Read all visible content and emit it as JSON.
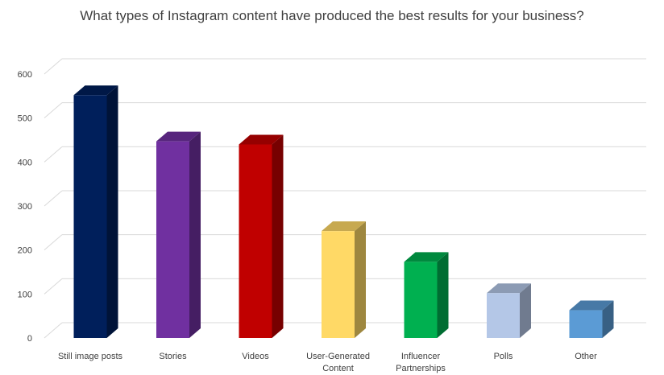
{
  "chart_data": {
    "type": "bar",
    "title": "What types of Instagram content have produced the best results for your business?",
    "xlabel": "",
    "ylabel": "",
    "categories": [
      "Still image posts",
      "Stories",
      "Videos",
      "User-Generated Content",
      "Influencer Partnerships",
      "Polls",
      "Other"
    ],
    "category_label_lines": [
      [
        "Still image posts"
      ],
      [
        "Stories"
      ],
      [
        "Videos"
      ],
      [
        "User-Generated",
        "Content"
      ],
      [
        "Influencer",
        "Partnerships"
      ],
      [
        "Polls"
      ],
      [
        "Other"
      ]
    ],
    "values": [
      552,
      447,
      440,
      243,
      173,
      102,
      63
    ],
    "ylim": [
      0,
      600
    ],
    "yticks": [
      0,
      100,
      200,
      300,
      400,
      500,
      600
    ],
    "grid": true,
    "legend": "none",
    "bar_colors": [
      "#001F5B",
      "#7030A0",
      "#C00000",
      "#FFD966",
      "#00B050",
      "#B4C7E7",
      "#5B9BD5"
    ],
    "style": "3d-column"
  }
}
